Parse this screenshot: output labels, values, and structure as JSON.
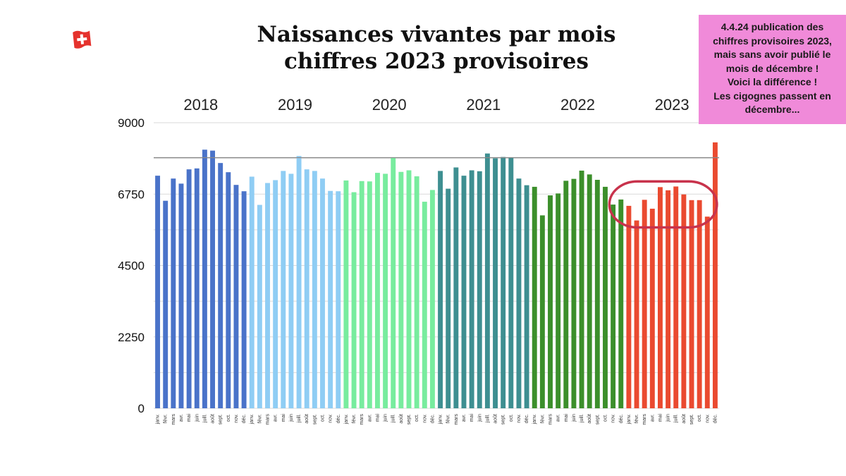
{
  "flag": {
    "icon": "swiss-flag-icon",
    "color": "#e5322d"
  },
  "note": {
    "lines": [
      "4.4.24 publication des",
      "chiffres provisoires 2023,",
      "mais sans avoir publié le",
      "mois de décembre !",
      "Voici la différence !",
      "Les cigognes passent en",
      "décembre..."
    ],
    "background": "#f08ad9"
  },
  "chart_data": {
    "type": "bar",
    "title": [
      "Naissances vivantes par mois",
      "chiffres 2023 provisoires"
    ],
    "xlabel": "",
    "ylabel": "",
    "ylim": [
      0,
      9000
    ],
    "yticks": [
      0,
      2250,
      4500,
      6750,
      9000
    ],
    "grid": true,
    "reference_line": 7900,
    "months": [
      "janv.",
      "févr.",
      "mars",
      "avr.",
      "mai",
      "juin",
      "juill.",
      "août",
      "sept.",
      "oct.",
      "nov.",
      "déc."
    ],
    "series": [
      {
        "name": "2018",
        "color": "#4a73c9",
        "values": [
          7330,
          6540,
          7240,
          7080,
          7530,
          7560,
          8150,
          8120,
          7730,
          7440,
          7040,
          6840
        ]
      },
      {
        "name": "2019",
        "color": "#8fcdf4",
        "values": [
          7300,
          6410,
          7100,
          7190,
          7480,
          7390,
          7950,
          7530,
          7480,
          7240,
          6850,
          6840
        ]
      },
      {
        "name": "2020",
        "color": "#78ec9e",
        "values": [
          7180,
          6810,
          7160,
          7150,
          7420,
          7390,
          7890,
          7450,
          7500,
          7310,
          6510,
          6880
        ]
      },
      {
        "name": "2021",
        "color": "#3e8f91",
        "values": [
          7480,
          6920,
          7590,
          7330,
          7500,
          7470,
          8030,
          7880,
          7920,
          7890,
          7240,
          7030
        ]
      },
      {
        "name": "2022",
        "color": "#3c8f2b",
        "values": [
          6980,
          6080,
          6710,
          6770,
          7170,
          7230,
          7490,
          7370,
          7200,
          6980,
          6420,
          6580
        ]
      },
      {
        "name": "2023",
        "color": "#ea4a30",
        "values": [
          6380,
          5920,
          6570,
          6290,
          6970,
          6870,
          6990,
          6740,
          6560,
          6560,
          6040,
          8380
        ]
      }
    ],
    "highlight": {
      "label": "ellipse around 2023 janv.–nov.",
      "color": "#c8334c"
    }
  }
}
